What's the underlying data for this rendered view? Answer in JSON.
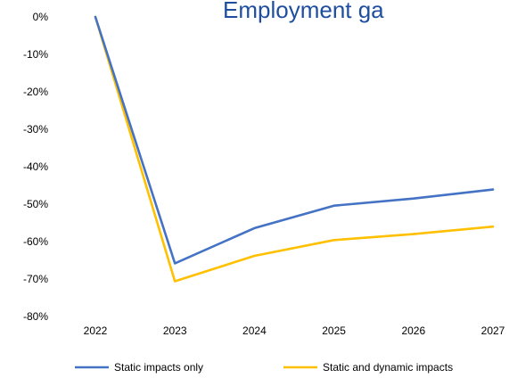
{
  "chart_data": {
    "type": "line",
    "title": "Employment ga",
    "x": [
      "2022",
      "2023",
      "2024",
      "2025",
      "2026",
      "2027"
    ],
    "yticks": [
      "0%",
      "-10%",
      "-20%",
      "-30%",
      "-40%",
      "-50%",
      "-60%",
      "-70%",
      "-80%"
    ],
    "ylim": [
      -80,
      0
    ],
    "y_unit": "%",
    "grid": false,
    "legend_position": "bottom",
    "series": [
      {
        "name": "Static impacts only",
        "color": "#4472c4",
        "values": [
          0,
          -65.8,
          -56.4,
          -50.4,
          -48.5,
          -46.1
        ]
      },
      {
        "name": "Static and dynamic impacts",
        "color": "#ffc000",
        "values": [
          0,
          -70.6,
          -63.8,
          -59.6,
          -58.0,
          -56.0
        ]
      }
    ]
  }
}
